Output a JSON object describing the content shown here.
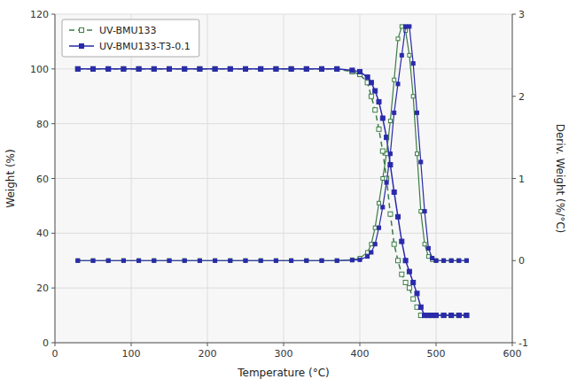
{
  "chart_data": {
    "type": "line",
    "x_label": "Temperature (°C)",
    "y_label": "Weight (%)",
    "y2_label": "Deriv. Weight (%/°C)",
    "xlim": [
      0,
      600
    ],
    "ylim": [
      0,
      120
    ],
    "y2lim": [
      -1,
      3
    ],
    "xticks": [
      0,
      100,
      200,
      300,
      400,
      500,
      600
    ],
    "yticks": [
      0,
      20,
      40,
      60,
      80,
      100,
      120
    ],
    "y2ticks": [
      -1,
      0,
      1,
      2,
      3
    ],
    "grid": true,
    "legend": "upper-left",
    "x": [
      30,
      50,
      70,
      90,
      110,
      130,
      150,
      170,
      190,
      210,
      230,
      250,
      270,
      290,
      310,
      330,
      350,
      370,
      390,
      400,
      410,
      415,
      420,
      425,
      430,
      435,
      440,
      445,
      450,
      455,
      460,
      465,
      470,
      475,
      480,
      485,
      490,
      495,
      500,
      510,
      520,
      530,
      540
    ],
    "series": [
      {
        "name": "UV-BMU133",
        "color": "#3a7d44",
        "marker": "square-open",
        "line_style": "dashed",
        "values": [
          100,
          100,
          100,
          100,
          100,
          100,
          100,
          100,
          100,
          100,
          100,
          100,
          100,
          100,
          100,
          100,
          100,
          100,
          99,
          98,
          95,
          90,
          85,
          78,
          70,
          60,
          47,
          36,
          30,
          25,
          22,
          20,
          16,
          13,
          10,
          10,
          10,
          10,
          10,
          10,
          10,
          10,
          10
        ]
      },
      {
        "name": "UV-BMU133-T3-0.1",
        "color": "#2a2aaa",
        "marker": "square",
        "line_style": "solid",
        "values": [
          100,
          100,
          100,
          100,
          100,
          100,
          100,
          100,
          100,
          100,
          100,
          100,
          100,
          100,
          100,
          100,
          100,
          100,
          99.5,
          99,
          97,
          95,
          92,
          88,
          82,
          75,
          65,
          55,
          46,
          37,
          30,
          26,
          22,
          18,
          13,
          10,
          10,
          10,
          10,
          10,
          10,
          10,
          10
        ]
      },
      {
        "axis": "y2",
        "color": "#3a7d44",
        "marker": "square-open",
        "line_style": "solid",
        "values": [
          0,
          0,
          0,
          0,
          0,
          0,
          0,
          0,
          0,
          0,
          0,
          0,
          0,
          0,
          0,
          0,
          0,
          0,
          0.01,
          0.03,
          0.1,
          0.2,
          0.4,
          0.7,
          1.0,
          1.3,
          1.7,
          2.2,
          2.7,
          2.85,
          2.8,
          2.5,
          2.0,
          1.3,
          0.6,
          0.2,
          0.05,
          0.01,
          0,
          0,
          0,
          0,
          0
        ]
      },
      {
        "axis": "y2",
        "color": "#2a2aaa",
        "marker": "square",
        "line_style": "solid",
        "values": [
          0,
          0,
          0,
          0,
          0,
          0,
          0,
          0,
          0,
          0,
          0,
          0,
          0,
          0,
          0,
          0,
          0,
          0,
          0.005,
          0.01,
          0.05,
          0.1,
          0.2,
          0.4,
          0.65,
          0.95,
          1.3,
          1.8,
          2.15,
          2.5,
          2.85,
          2.85,
          2.4,
          1.8,
          1.2,
          0.6,
          0.15,
          0.03,
          0,
          0,
          0,
          0,
          0
        ]
      }
    ]
  }
}
